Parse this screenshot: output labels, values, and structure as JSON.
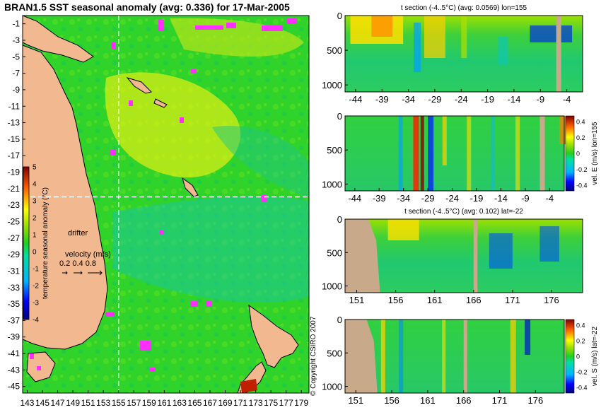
{
  "header": {
    "title": "BRAN1.5 SST seasonal anomaly (avg: 0.336) for 17-Mar-2005"
  },
  "map": {
    "lat_ticks": [
      -1,
      -3,
      -5,
      -7,
      -9,
      -11,
      -13,
      -15,
      -17,
      -19,
      -21,
      -23,
      -25,
      -27,
      -29,
      -31,
      -33,
      -35,
      -37,
      -39,
      -41,
      -43,
      -45
    ],
    "lon_ticks": [
      143,
      145,
      147,
      149,
      151,
      153,
      155,
      157,
      159,
      161,
      163,
      165,
      167,
      169,
      171,
      173,
      175,
      177,
      179
    ],
    "guide_lon": 155,
    "guide_lat": -22,
    "colorbar": {
      "label": "temperature seasonal anomaly (°C)",
      "ticks": [
        5,
        4,
        3,
        2,
        1,
        0,
        -1,
        -2,
        -3,
        -4
      ],
      "range": [
        -4,
        5
      ]
    },
    "legend": {
      "drifter": "drifter",
      "velocity_title": "velocity (m/s)",
      "velocity_values": "0.2 0.4 0.8"
    },
    "copyright": "© Copyright CSIRO 2007"
  },
  "chart_data": [
    {
      "type": "heatmap",
      "title": "t section (-4..5°C) (avg: 0.0569) lon=155",
      "x_ticks": [
        -44,
        -39,
        -34,
        -29,
        -24,
        -19,
        -14,
        -9,
        -4
      ],
      "y_ticks": [
        0,
        500,
        1000
      ],
      "xlim": [
        -46,
        -1
      ],
      "ylim": [
        1100,
        0
      ]
    },
    {
      "type": "heatmap",
      "title": "",
      "x_ticks": [
        -44,
        -39,
        -34,
        -29,
        -24,
        -19,
        -14,
        -9,
        -4
      ],
      "y_ticks": [
        0,
        500,
        1000
      ],
      "xlim": [
        -46,
        -1
      ],
      "ylim": [
        1100,
        0
      ],
      "colorbar_label": "vel. E (m/s) lon=155",
      "colorbar_ticks": [
        "0.4",
        "0.2",
        "0",
        "-0.2",
        "-0.4"
      ]
    },
    {
      "type": "heatmap",
      "title": "t section (-4..5°C) (avg: 0.102) lat=-22",
      "x_ticks": [
        151,
        156,
        161,
        166,
        171,
        176
      ],
      "y_ticks": [
        0,
        500,
        1000
      ],
      "xlim": [
        149.5,
        180
      ],
      "ylim": [
        1100,
        0
      ]
    },
    {
      "type": "heatmap",
      "title": "",
      "x_ticks": [
        151,
        156,
        161,
        166,
        171,
        176
      ],
      "y_ticks": [
        0,
        500,
        1000
      ],
      "xlim": [
        149.5,
        180
      ],
      "ylim": [
        1100,
        0
      ],
      "colorbar_label": "vel. S (m/s) lat=-22",
      "colorbar_ticks": [
        "0.4",
        "0.2",
        "0",
        "-0.2",
        "-0.4"
      ]
    }
  ]
}
